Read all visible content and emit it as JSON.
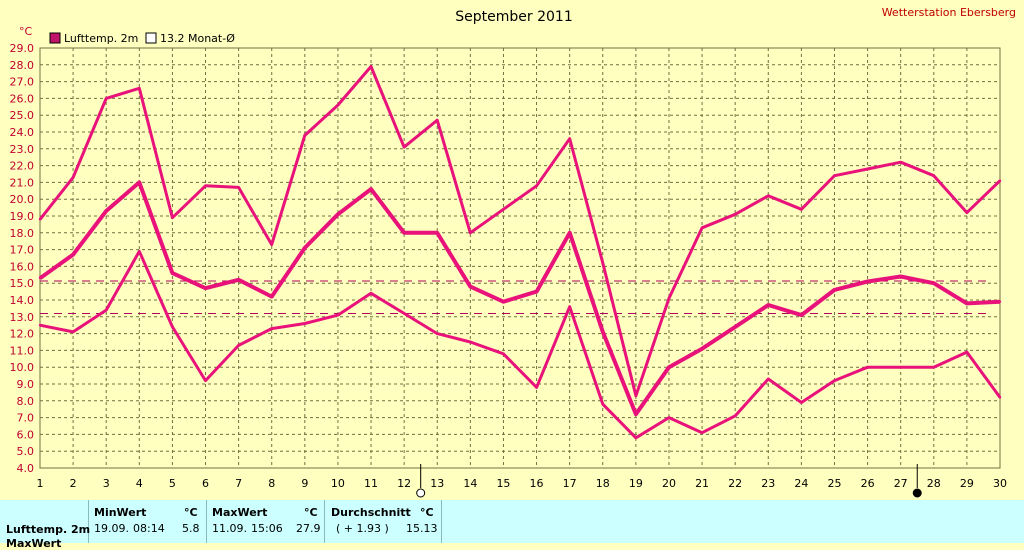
{
  "chart_data": {
    "type": "line",
    "title": "September 2011",
    "station": "Wetterstation Ebersberg",
    "y_unit": "°C",
    "legend": [
      "Lufttemp. 2m",
      "13.2 Monat-Ø"
    ],
    "legend_position": "top-left",
    "ylim": [
      4.0,
      29.0
    ],
    "yticks": [
      "4.0",
      "5.0",
      "6.0",
      "7.0",
      "8.0",
      "9.0",
      "10.0",
      "11.0",
      "12.0",
      "13.0",
      "14.0",
      "15.0",
      "16.0",
      "17.0",
      "18.0",
      "19.0",
      "20.0",
      "21.0",
      "22.0",
      "23.0",
      "24.0",
      "25.0",
      "26.0",
      "27.0",
      "28.0",
      "29.0"
    ],
    "x": [
      1,
      2,
      3,
      4,
      5,
      6,
      7,
      8,
      9,
      10,
      11,
      12,
      13,
      14,
      15,
      16,
      17,
      18,
      19,
      20,
      21,
      22,
      23,
      24,
      25,
      26,
      27,
      28,
      29,
      30
    ],
    "xticks": [
      "1",
      "2",
      "3",
      "4",
      "5",
      "6",
      "7",
      "8",
      "9",
      "10",
      "11",
      "12",
      "13",
      "14",
      "15",
      "16",
      "17",
      "18",
      "19",
      "20",
      "21",
      "22",
      "23",
      "24",
      "25",
      "26",
      "27",
      "28",
      "29",
      "30"
    ],
    "grid": true,
    "series": [
      {
        "name": "max",
        "color": "#E8127A",
        "values": [
          18.8,
          21.3,
          26.0,
          26.6,
          18.9,
          20.8,
          20.7,
          17.3,
          23.8,
          25.6,
          27.9,
          23.1,
          24.7,
          18.0,
          19.4,
          20.8,
          23.6,
          16.2,
          8.3,
          14.1,
          18.3,
          19.1,
          20.2,
          19.4,
          21.4,
          21.8,
          22.2,
          21.4,
          19.2,
          21.1
        ]
      },
      {
        "name": "mean",
        "color": "#E8127A",
        "values": [
          15.3,
          16.7,
          19.3,
          21.0,
          15.6,
          14.7,
          15.2,
          14.2,
          17.1,
          19.1,
          20.6,
          18.0,
          18.0,
          14.8,
          13.9,
          14.5,
          18.0,
          12.1,
          7.2,
          10.0,
          11.1,
          12.4,
          13.7,
          13.1,
          14.6,
          15.1,
          15.4,
          15.0,
          13.8,
          13.9
        ]
      },
      {
        "name": "min",
        "color": "#E8127A",
        "values": [
          12.5,
          12.1,
          13.4,
          16.9,
          12.4,
          9.2,
          11.3,
          12.3,
          12.6,
          13.1,
          14.4,
          13.2,
          12.0,
          11.5,
          10.8,
          8.8,
          13.6,
          7.8,
          5.8,
          7.0,
          6.1,
          7.1,
          9.3,
          7.9,
          9.2,
          10.0,
          10.0,
          10.0,
          10.9,
          8.2
        ]
      }
    ],
    "reference_lines": [
      {
        "value": 15.13,
        "color": "#B00060",
        "style": "dashed"
      },
      {
        "value": 13.2,
        "color": "#B00060",
        "style": "dashed"
      }
    ],
    "moon_markers": [
      {
        "x": 12.5,
        "phase": "full"
      },
      {
        "x": 27.5,
        "phase": "new"
      }
    ]
  },
  "stats": {
    "row_label": "Lufttemp. 2m",
    "row2_label": "MaxWert",
    "min": {
      "header": "MinWert",
      "unit": "°C",
      "date": "19.09.",
      "time": "08:14",
      "value": "5.8"
    },
    "max": {
      "header": "MaxWert",
      "unit": "°C",
      "date": "11.09.",
      "time": "15:06",
      "value": "27.9"
    },
    "avg": {
      "header": "Durchschnitt",
      "unit": "°C",
      "delta": "( + 1.93 )",
      "value": "15.13"
    }
  },
  "colors": {
    "background": "#FFFFC0",
    "line": "#E8127A",
    "grid": "#707040",
    "panel": "#CCFFFF",
    "axis_text": "#C00030"
  }
}
